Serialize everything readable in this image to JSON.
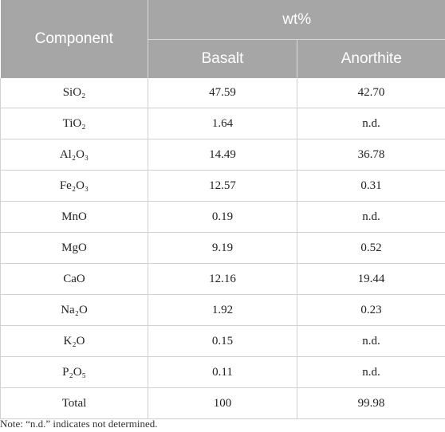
{
  "table": {
    "header": {
      "component": "Component",
      "group": "wt%",
      "col_basalt": "Basalt",
      "col_anorthite": "Anorthite"
    },
    "rows": [
      {
        "component": "SiO₂",
        "basalt": "47.59",
        "anorthite": "42.70"
      },
      {
        "component": "TiO₂",
        "basalt": "1.64",
        "anorthite": "n.d."
      },
      {
        "component": "Al₂O₃",
        "basalt": "14.49",
        "anorthite": "36.78"
      },
      {
        "component": "Fe₂O₃",
        "basalt": "12.57",
        "anorthite": "0.31"
      },
      {
        "component": "MnO",
        "basalt": "0.19",
        "anorthite": "n.d."
      },
      {
        "component": "MgO",
        "basalt": "9.19",
        "anorthite": "0.52"
      },
      {
        "component": "CaO",
        "basalt": "12.16",
        "anorthite": "19.44"
      },
      {
        "component": "Na₂O",
        "basalt": "1.92",
        "anorthite": "0.23"
      },
      {
        "component": "K₂O",
        "basalt": "0.15",
        "anorthite": "n.d."
      },
      {
        "component": "P₂O₅",
        "basalt": "0.11",
        "anorthite": "n.d."
      },
      {
        "component": "Total",
        "basalt": "100",
        "anorthite": "99.98"
      }
    ]
  },
  "note": "Note: “n.d.” indicates not determined."
}
